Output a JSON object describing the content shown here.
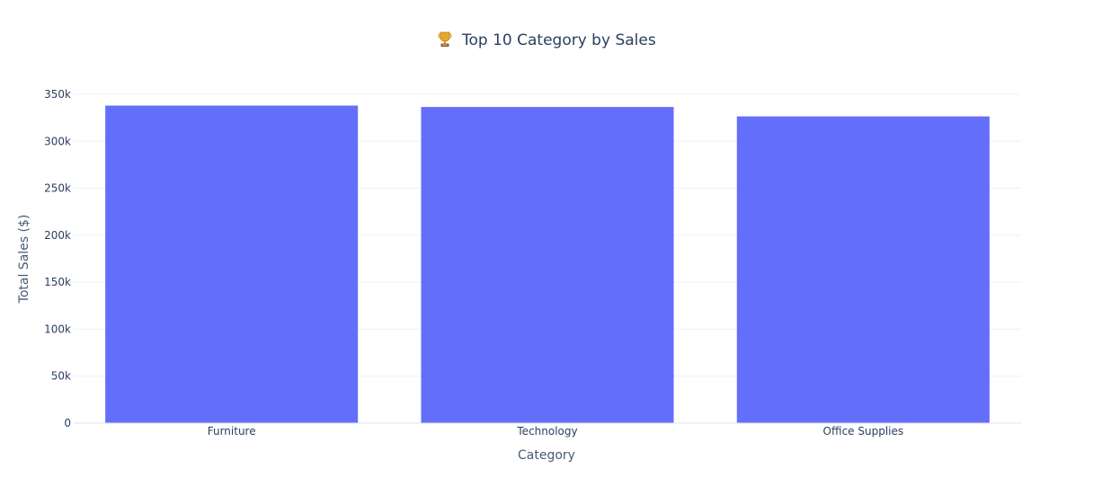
{
  "chart_data": {
    "type": "bar",
    "title": "Top 10 Category by Sales",
    "title_icon": "trophy-icon",
    "xlabel": "Category",
    "ylabel": "Total Sales ($)",
    "categories": [
      "Furniture",
      "Technology",
      "Office Supplies"
    ],
    "values": [
      338000,
      336500,
      326500
    ],
    "ylim": [
      0,
      350000
    ],
    "yticks": [
      0,
      50000,
      100000,
      150000,
      200000,
      250000,
      300000,
      350000
    ],
    "ytick_labels": [
      "0",
      "50k",
      "100k",
      "150k",
      "200k",
      "250k",
      "300k",
      "350k"
    ],
    "grid": true,
    "legend": "none",
    "colors": {
      "bar": "#636efa",
      "grid": "#ebf0f8",
      "axis_line": "#dfe3ee",
      "text": "#2a3f5f",
      "background": "#ffffff"
    }
  }
}
